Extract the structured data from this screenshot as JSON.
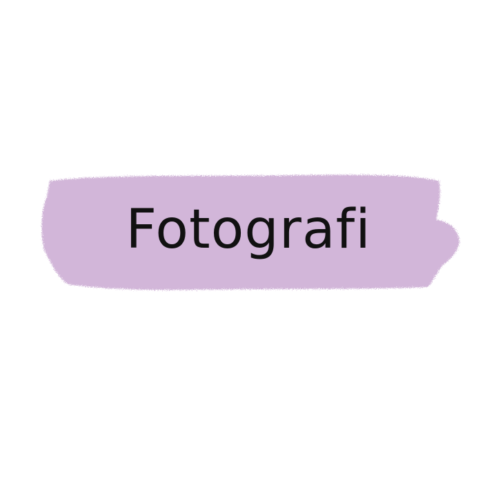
{
  "label": {
    "text": "Fotografi",
    "text_color": "#111111"
  },
  "brush_stroke": {
    "color": "#d2b6d9"
  },
  "background_color": "#ffffff"
}
